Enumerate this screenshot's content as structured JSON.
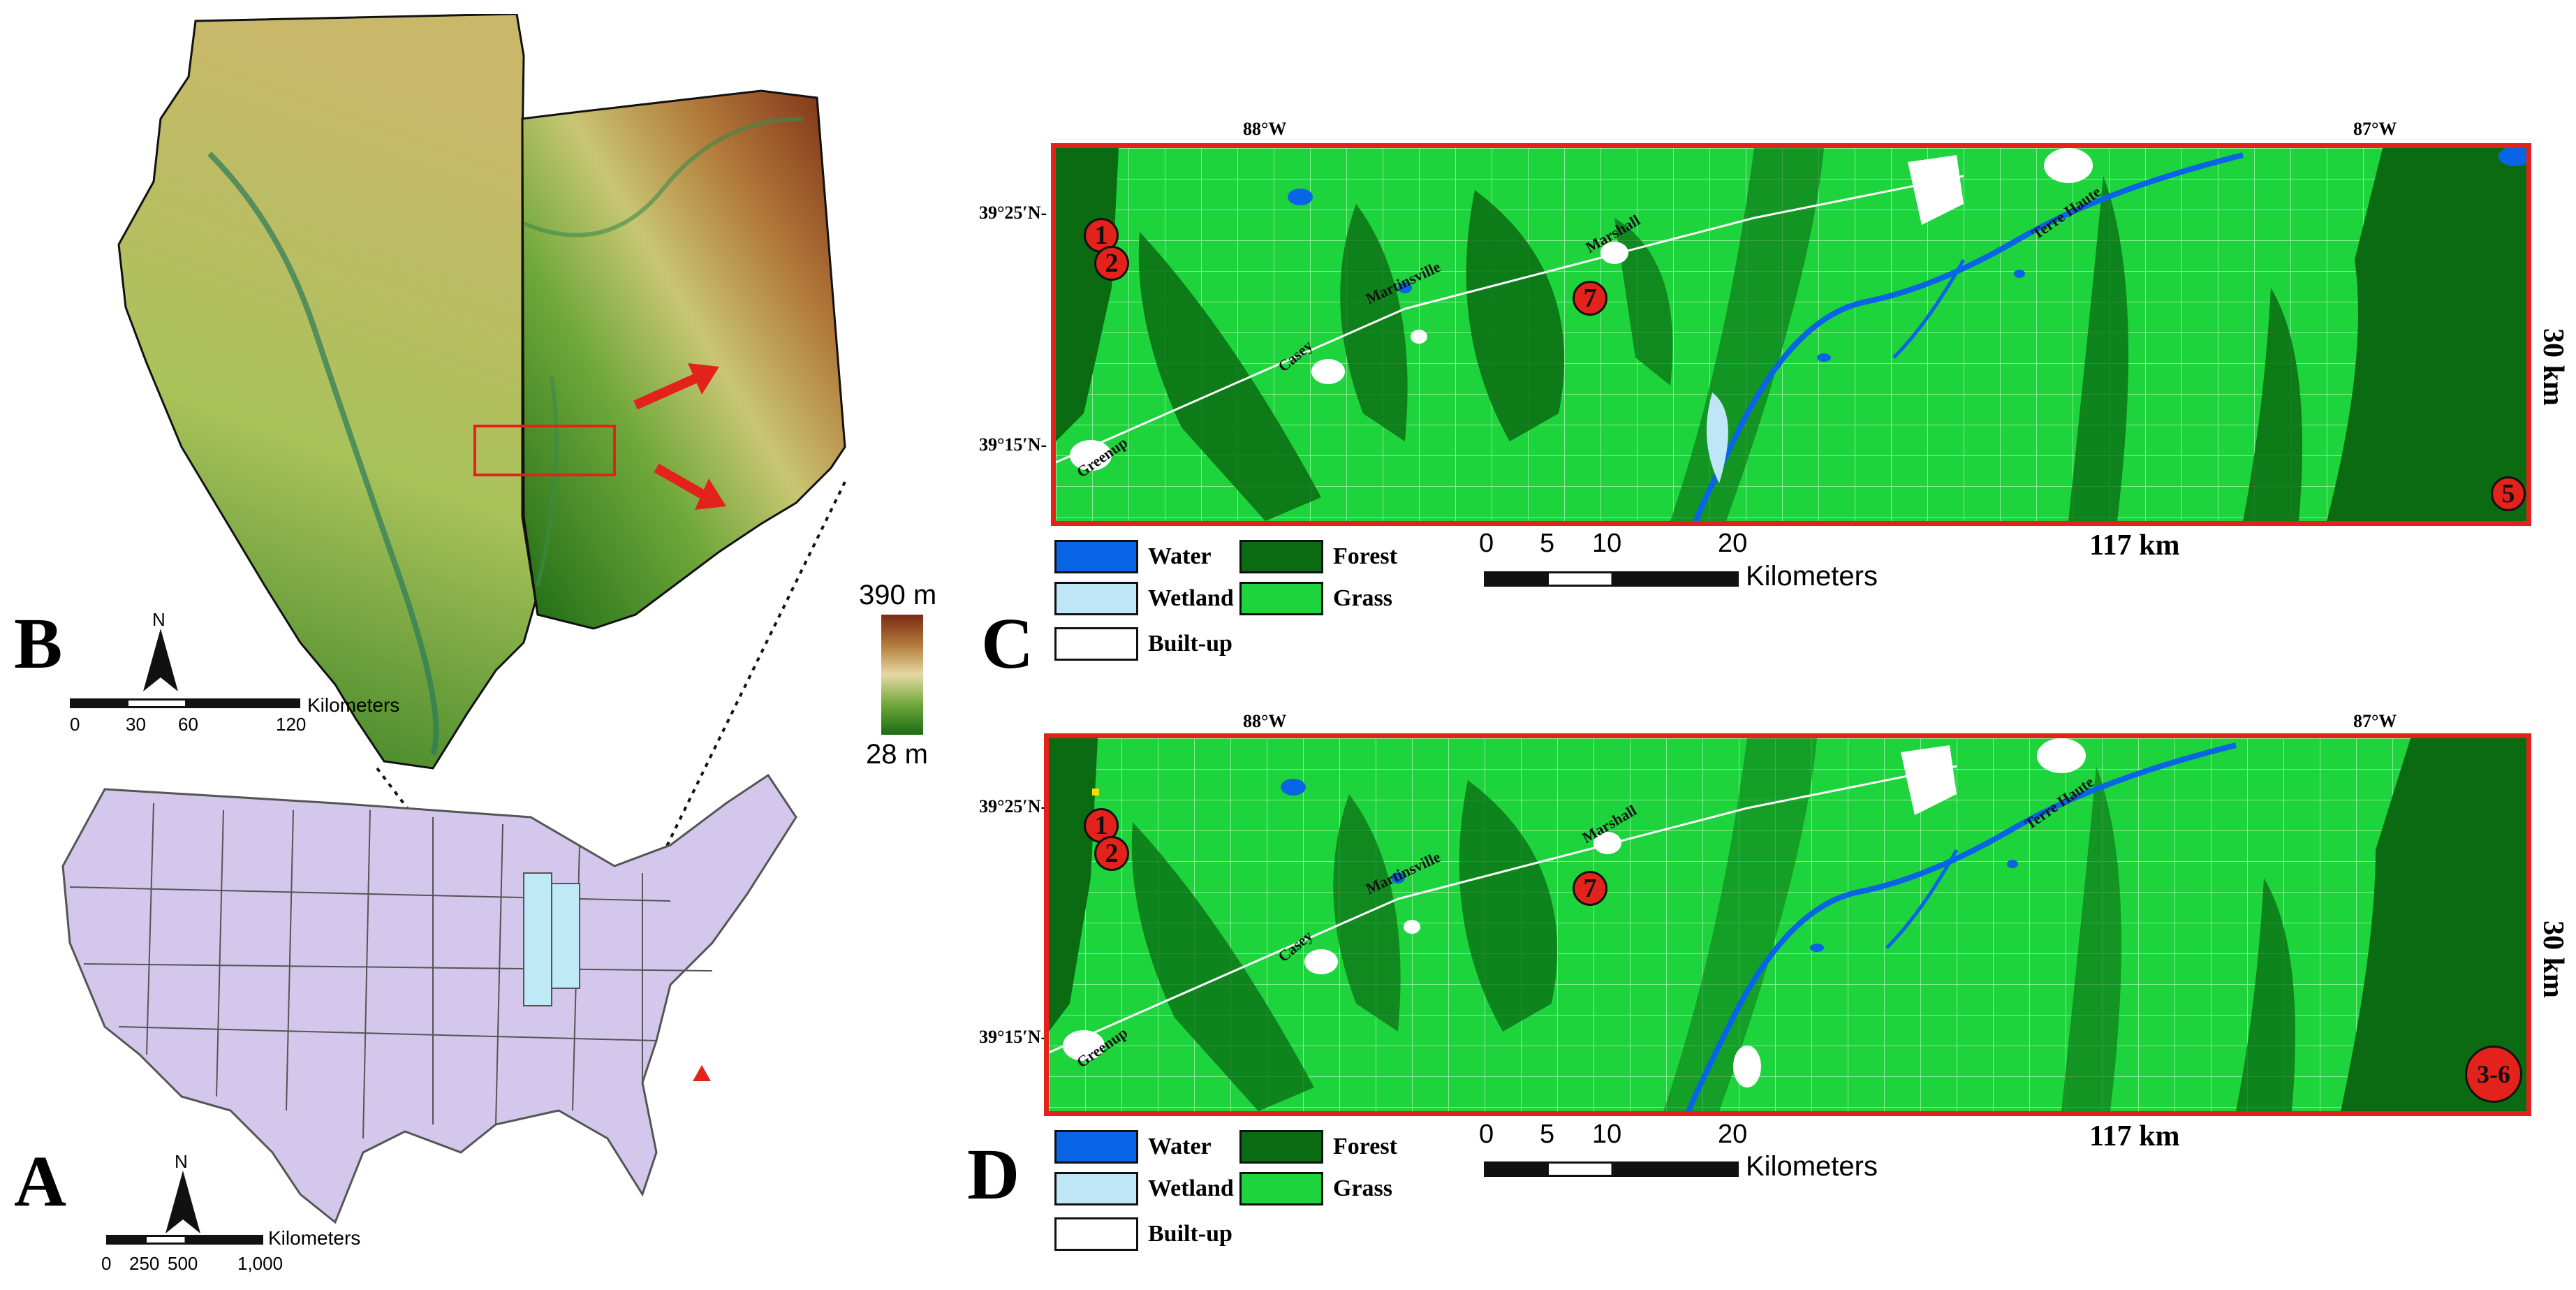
{
  "colors": {
    "water": "#0a64e6",
    "wetland": "#bfe6f7",
    "built_up": "#ffffff",
    "forest": "#0a6b12",
    "grass": "#1ed43c",
    "site": "#e3231b",
    "border": "#e3231b",
    "us_states": "#d4c7ec",
    "study_states": "#bfe9f7",
    "elev_low": "#1c6b14",
    "elev_mid": "#d9c97a",
    "elev_high": "#7a2a14"
  },
  "panel_a": {
    "letter": "A",
    "north": "N",
    "scale_unit": "Kilometers",
    "scale_ticks": [
      "0",
      "250",
      "500",
      "1,000"
    ]
  },
  "panel_b": {
    "letter": "B",
    "north": "N",
    "scale_unit": "Kilometers",
    "scale_ticks": [
      "0",
      "30",
      "60",
      "120"
    ],
    "elev_max": "390 m",
    "elev_min": "28 m"
  },
  "panel_c": {
    "letter": "C",
    "lon_left": "88°W",
    "lon_right": "87°W",
    "lat_top": "39°25′N-",
    "lat_bottom": "39°15′N-",
    "height_label": "30 km",
    "width_label": "117 km",
    "scale_unit": "Kilometers",
    "scale_ticks": [
      "0",
      "5",
      "10",
      "20"
    ],
    "towns": [
      "Terre Haute",
      "Marshall",
      "Martinsville",
      "Casey",
      "Greenup"
    ],
    "sites": [
      "1",
      "2",
      "7",
      "5"
    ],
    "legend": {
      "water": "Water",
      "forest": "Forest",
      "wetland": "Wetland",
      "grass": "Grass",
      "built_up": "Built-up"
    }
  },
  "panel_d": {
    "letter": "D",
    "lon_left": "88°W",
    "lon_right": "87°W",
    "lat_top": "39°25′N-",
    "lat_bottom": "39°15′N-",
    "height_label": "30 km",
    "width_label": "117 km",
    "scale_unit": "Kilometers",
    "scale_ticks": [
      "0",
      "5",
      "10",
      "20"
    ],
    "towns": [
      "Terre Haute",
      "Marshall",
      "Martinsville",
      "Casey",
      "Greenup"
    ],
    "sites": [
      "1",
      "2",
      "7",
      "3-6"
    ],
    "legend": {
      "water": "Water",
      "forest": "Forest",
      "wetland": "Wetland",
      "grass": "Grass",
      "built_up": "Built-up"
    }
  }
}
